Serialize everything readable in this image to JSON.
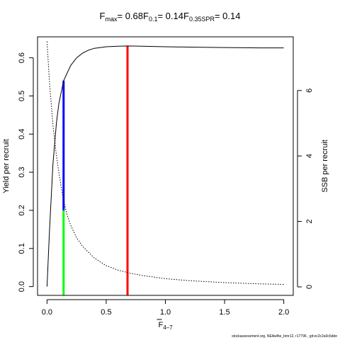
{
  "chart_data": {
    "type": "line",
    "title_parts": [
      {
        "main": "F",
        "sub": "max",
        "value": "= 0.68"
      },
      {
        "main": "F",
        "sub": "0.1",
        "value": "= 0.14"
      },
      {
        "main": "F",
        "sub": "0.35SPR",
        "value": "= 0.14"
      }
    ],
    "xlabel": {
      "main": "F",
      "bar": true,
      "sub": "4–7"
    },
    "ylabel_left": "Yield per recruit",
    "ylabel_right": "SSB per recruit",
    "xlim": [
      -0.08,
      2.08
    ],
    "ylim_left": [
      -0.023,
      0.655
    ],
    "ylim_right": [
      -0.26,
      7.64
    ],
    "x_ticks": [
      0.0,
      0.5,
      1.0,
      1.5,
      2.0
    ],
    "x_tick_labels": [
      "0.0",
      "0.5",
      "1.0",
      "1.5",
      "2.0"
    ],
    "y_left_ticks": [
      0.0,
      0.1,
      0.2,
      0.3,
      0.4,
      0.5,
      0.6
    ],
    "y_left_tick_labels": [
      "0.0",
      "0.1",
      "0.2",
      "0.3",
      "0.4",
      "0.5",
      "0.6"
    ],
    "y_right_ticks": [
      0,
      2,
      4,
      6
    ],
    "y_right_tick_labels": [
      "0",
      "2",
      "4",
      "6"
    ],
    "series": [
      {
        "axis": "left",
        "style": "solid",
        "color": "#000000",
        "x": [
          0,
          0.02,
          0.05,
          0.08,
          0.1,
          0.14,
          0.2,
          0.25,
          0.3,
          0.35,
          0.4,
          0.5,
          0.6,
          0.68,
          0.8,
          1.0,
          1.2,
          1.5,
          1.8,
          2.0
        ],
        "y": [
          0.0,
          0.14,
          0.32,
          0.43,
          0.48,
          0.54,
          0.58,
          0.6,
          0.612,
          0.62,
          0.625,
          0.629,
          0.6305,
          0.631,
          0.6305,
          0.629,
          0.628,
          0.627,
          0.626,
          0.626
        ]
      },
      {
        "axis": "right",
        "style": "dotted",
        "color": "#000000",
        "x": [
          0,
          0.02,
          0.05,
          0.08,
          0.1,
          0.12,
          0.14,
          0.17,
          0.2,
          0.25,
          0.3,
          0.4,
          0.5,
          0.6,
          0.7,
          0.8,
          1.0,
          1.2,
          1.5,
          1.8,
          2.0
        ],
        "y": [
          7.5,
          6.3,
          4.95,
          4.0,
          3.5,
          3.05,
          2.63,
          2.2,
          1.88,
          1.5,
          1.24,
          0.88,
          0.65,
          0.51,
          0.42,
          0.35,
          0.25,
          0.19,
          0.13,
          0.09,
          0.075
        ]
      }
    ],
    "reference_lines": [
      {
        "name": "F0.1 yield",
        "color": "#0000ff",
        "axis": "left",
        "x": 0.14,
        "y0": 0.2,
        "y1": 0.54
      },
      {
        "name": "F0.35SPR",
        "color": "#00ff00",
        "axis": "left",
        "x": 0.14,
        "y0": -0.023,
        "y1": 0.2
      },
      {
        "name": "Fmax",
        "color": "#ff0000",
        "axis": "left",
        "x": 0.68,
        "y0": -0.023,
        "y1": 0.631
      }
    ]
  },
  "footer": "stockassessment.org, NEAwlhe_bmr12, r17796 , git:ec2c2a0c6dde"
}
